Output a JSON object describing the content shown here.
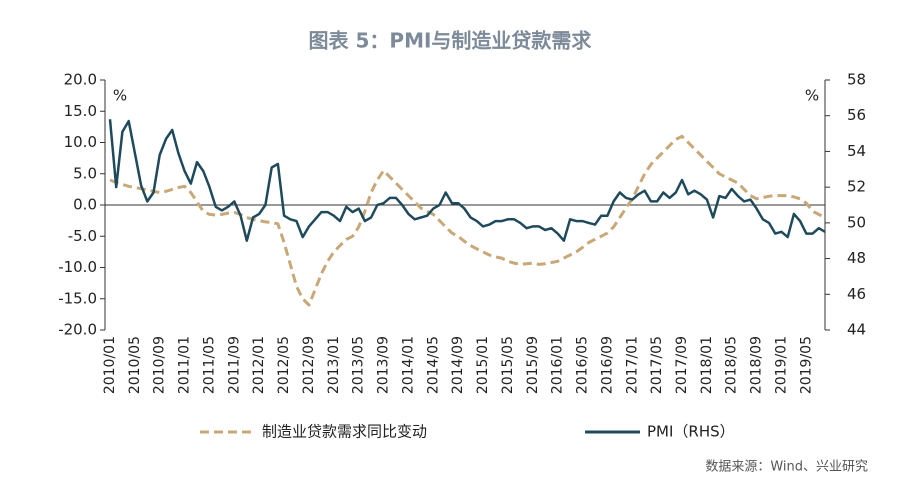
{
  "chart_data": {
    "type": "line",
    "title": "图表 5：PMI与制造业贷款需求",
    "source": "数据来源：Wind、兴业研究",
    "y_unit": "%",
    "y2_unit": "%",
    "categories": [
      "2010/01",
      null,
      null,
      null,
      "2010/05",
      null,
      null,
      null,
      "2010/09",
      null,
      null,
      null,
      "2011/01",
      null,
      null,
      null,
      "2011/05",
      null,
      null,
      null,
      "2011/09",
      null,
      null,
      null,
      "2012/01",
      null,
      null,
      null,
      "2012/05",
      null,
      null,
      null,
      "2012/09",
      null,
      null,
      null,
      "2013/01",
      null,
      null,
      null,
      "2013/05",
      null,
      null,
      null,
      "2013/09",
      null,
      null,
      null,
      "2014/01",
      null,
      null,
      null,
      "2014/05",
      null,
      null,
      null,
      "2014/09",
      null,
      null,
      null,
      "2015/01",
      null,
      null,
      null,
      "2015/05",
      null,
      null,
      null,
      "2015/09",
      null,
      null,
      null,
      "2016/01",
      null,
      null,
      null,
      "2016/05",
      null,
      null,
      null,
      "2016/09",
      null,
      null,
      null,
      "2017/01",
      null,
      null,
      null,
      "2017/05",
      null,
      null,
      null,
      "2017/09",
      null,
      null,
      null,
      "2018/01",
      null,
      null,
      null,
      "2018/05",
      null,
      null,
      null,
      "2018/09",
      null,
      null,
      null,
      "2019/01",
      null,
      null,
      null,
      "2019/05",
      null,
      null,
      null
    ],
    "series": [
      {
        "name": "制造业贷款需求同比变动",
        "color": "#c9a878",
        "dashed": true,
        "values": [
          4.0,
          3.6,
          3.3,
          3.0,
          2.8,
          2.6,
          2.4,
          2.2,
          2.0,
          2.2,
          2.5,
          2.8,
          3.0,
          2.0,
          0.5,
          -1.0,
          -1.5,
          -1.6,
          -1.5,
          -1.3,
          -1.2,
          -1.5,
          -2.0,
          -2.3,
          -2.5,
          -2.7,
          -2.8,
          -3.0,
          -6.0,
          -9.5,
          -13.0,
          -15.0,
          -16.0,
          -13.5,
          -11.0,
          -9.0,
          -7.5,
          -6.5,
          -5.5,
          -5.0,
          -3.5,
          -1.0,
          2.0,
          4.0,
          5.5,
          4.5,
          3.5,
          2.5,
          1.5,
          0.5,
          -0.5,
          -1.0,
          -1.5,
          -2.5,
          -3.5,
          -4.5,
          -5.0,
          -5.8,
          -6.5,
          -7.0,
          -7.5,
          -8.0,
          -8.3,
          -8.5,
          -9.0,
          -9.3,
          -9.5,
          -9.4,
          -9.3,
          -9.5,
          -9.4,
          -9.2,
          -9.0,
          -8.5,
          -8.0,
          -7.5,
          -6.8,
          -6.0,
          -5.5,
          -5.0,
          -4.5,
          -3.5,
          -2.0,
          -0.5,
          1.0,
          3.0,
          5.0,
          6.5,
          7.5,
          8.5,
          9.5,
          10.5,
          11.0,
          10.0,
          9.0,
          8.0,
          7.0,
          6.0,
          5.0,
          4.5,
          4.0,
          3.5,
          2.5,
          1.5,
          1.0,
          1.2,
          1.4,
          1.5,
          1.5,
          1.5,
          1.3,
          1.0,
          0.3,
          -1.0,
          -1.5,
          -2.0
        ]
      },
      {
        "name": "PMI（RHS）",
        "color": "#1f4a5c",
        "axis": "y2",
        "values": [
          55.8,
          52.0,
          55.1,
          55.7,
          53.9,
          52.1,
          51.2,
          51.7,
          53.8,
          54.7,
          55.2,
          53.9,
          52.9,
          52.2,
          53.4,
          52.9,
          52.0,
          50.9,
          50.7,
          50.9,
          51.2,
          50.4,
          49.0,
          50.3,
          50.5,
          51.0,
          53.1,
          53.3,
          50.4,
          50.2,
          50.1,
          49.2,
          49.8,
          50.2,
          50.6,
          50.6,
          50.4,
          50.1,
          50.9,
          50.6,
          50.8,
          50.1,
          50.3,
          51.0,
          51.1,
          51.4,
          51.4,
          51.0,
          50.5,
          50.2,
          50.3,
          50.4,
          50.8,
          51.0,
          51.7,
          51.1,
          51.1,
          50.8,
          50.3,
          50.1,
          49.8,
          49.9,
          50.1,
          50.1,
          50.2,
          50.2,
          50.0,
          49.7,
          49.8,
          49.8,
          49.6,
          49.7,
          49.4,
          49.0,
          50.2,
          50.1,
          50.1,
          50.0,
          49.9,
          50.4,
          50.4,
          51.2,
          51.7,
          51.4,
          51.3,
          51.6,
          51.8,
          51.2,
          51.2,
          51.7,
          51.4,
          51.7,
          52.4,
          51.6,
          51.8,
          51.6,
          51.3,
          50.3,
          51.5,
          51.4,
          51.9,
          51.5,
          51.2,
          51.3,
          50.8,
          50.2,
          50.0,
          49.4,
          49.5,
          49.2,
          50.5,
          50.1,
          49.4,
          49.4,
          49.7,
          49.5
        ]
      }
    ],
    "ylim": [
      -20,
      20
    ],
    "yticks": [
      {
        "value": -20,
        "label": "-20.0"
      },
      {
        "value": -15,
        "label": "-15.0"
      },
      {
        "value": -10,
        "label": "-10.0"
      },
      {
        "value": -5,
        "label": "-5.0"
      },
      {
        "value": 0,
        "label": "0.0"
      },
      {
        "value": 5,
        "label": "5.0"
      },
      {
        "value": 10,
        "label": "10.0"
      },
      {
        "value": 15,
        "label": "15.0"
      },
      {
        "value": 20,
        "label": "20.0"
      }
    ],
    "y2lim": [
      44,
      58
    ],
    "y2ticks": [
      44,
      46,
      48,
      50,
      52,
      54,
      56,
      58
    ],
    "grid": false
  }
}
